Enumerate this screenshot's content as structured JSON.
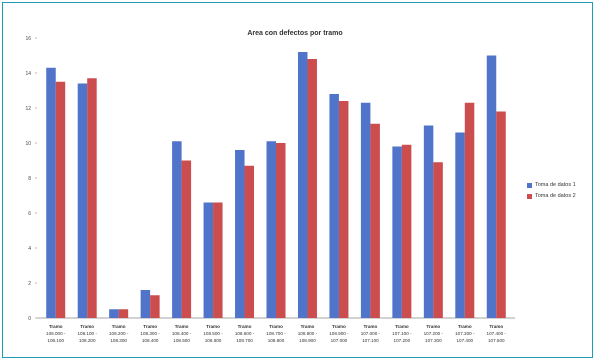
{
  "chart_data": {
    "type": "bar",
    "title": "Area con defectos por tramo",
    "xlabel": "",
    "ylabel": "",
    "ylim": [
      0,
      16
    ],
    "yticks": [
      0,
      2,
      4,
      6,
      8,
      10,
      12,
      14,
      16
    ],
    "grid": false,
    "legend_position": "right",
    "categories": [
      [
        "Tramo",
        "108.000 -",
        "108.100"
      ],
      [
        "Tramo",
        "108.100 -",
        "108.200"
      ],
      [
        "Tramo",
        "108.200 -",
        "108.300"
      ],
      [
        "Tramo",
        "108.300 -",
        "108.400"
      ],
      [
        "Tramo",
        "108.400 -",
        "108.500"
      ],
      [
        "Tramo",
        "108.500 -",
        "108.600"
      ],
      [
        "Tramo",
        "108.600 -",
        "108.700"
      ],
      [
        "Tramo",
        "108.700 -",
        "108.800"
      ],
      [
        "Tramo",
        "108.800 -",
        "108.900"
      ],
      [
        "Tramo",
        "108.900 -",
        "107.000"
      ],
      [
        "Tramo",
        "107.000 -",
        "107.100"
      ],
      [
        "Tramo",
        "107.100 -",
        "107.200"
      ],
      [
        "Tramo",
        "107.200 -",
        "107.300"
      ],
      [
        "Tramo",
        "107.300 -",
        "107.400"
      ],
      [
        "Tramo",
        "107.400 -",
        "107.500"
      ]
    ],
    "series": [
      {
        "name": "Toma de datos 1",
        "color": "#4f74c9",
        "values": [
          14.3,
          13.4,
          0.5,
          1.6,
          10.1,
          6.6,
          9.6,
          10.1,
          15.2,
          12.8,
          12.3,
          9.8,
          11.0,
          10.6,
          15.0
        ]
      },
      {
        "name": "Toma de datos 2",
        "color": "#cc4d4e",
        "values": [
          13.5,
          13.7,
          0.5,
          1.3,
          9.0,
          6.6,
          8.7,
          10.0,
          14.8,
          12.4,
          11.1,
          9.9,
          8.9,
          12.3,
          11.8
        ]
      }
    ]
  }
}
